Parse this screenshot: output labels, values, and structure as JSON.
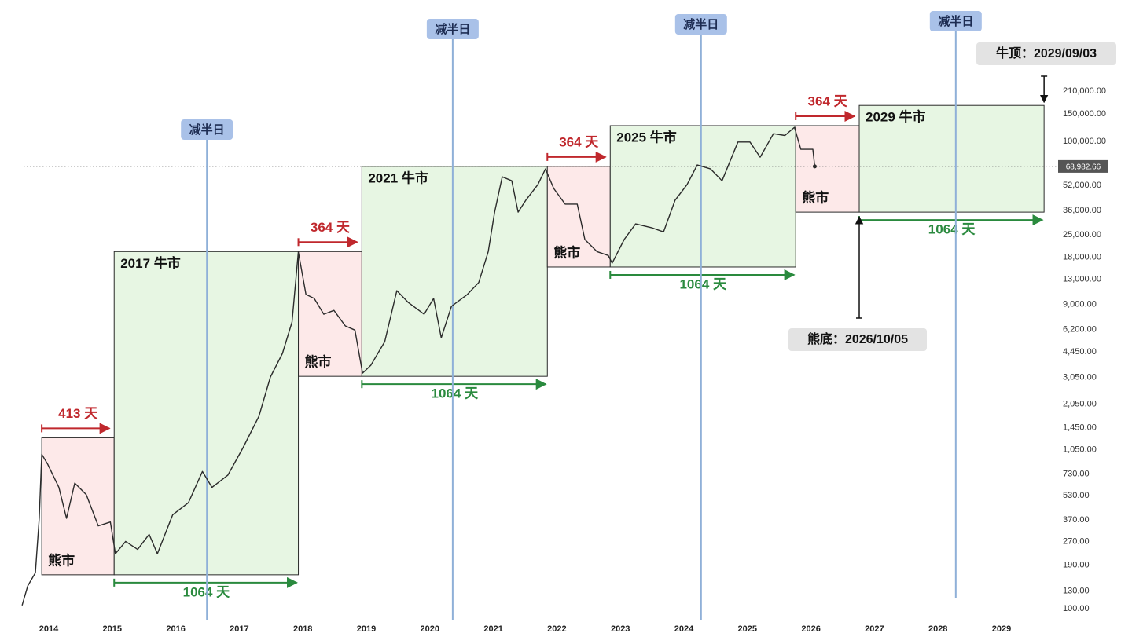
{
  "chart_data": {
    "type": "line",
    "log_y": true,
    "color": "#2b2b2b",
    "x": [
      2013.58,
      2013.67,
      2013.79,
      2013.85,
      2013.89,
      2013.98,
      2014.16,
      2014.28,
      2014.41,
      2014.59,
      2014.78,
      2014.97,
      2015.05,
      2015.21,
      2015.4,
      2015.58,
      2015.71,
      2015.95,
      2016.2,
      2016.42,
      2016.57,
      2016.82,
      2017.06,
      2017.31,
      2017.49,
      2017.68,
      2017.83,
      2017.93,
      2018.05,
      2018.18,
      2018.33,
      2018.49,
      2018.67,
      2018.82,
      2018.94,
      2019.07,
      2019.29,
      2019.48,
      2019.66,
      2019.91,
      2020.06,
      2020.18,
      2020.34,
      2020.59,
      2020.77,
      2020.92,
      2021.02,
      2021.14,
      2021.29,
      2021.39,
      2021.51,
      2021.7,
      2021.82,
      2021.95,
      2022.13,
      2022.32,
      2022.44,
      2022.63,
      2022.81,
      2022.87,
      2023.06,
      2023.24,
      2023.49,
      2023.68,
      2023.86,
      2024.05,
      2024.21,
      2024.42,
      2024.6,
      2024.85,
      2025.04,
      2025.2,
      2025.41,
      2025.59,
      2025.74,
      2025.84,
      2026.03,
      2026.06
    ],
    "values": [
      105,
      140,
      170,
      380,
      980,
      850,
      600,
      380,
      640,
      540,
      340,
      360,
      225,
      270,
      240,
      300,
      225,
      400,
      480,
      760,
      600,
      720,
      1080,
      1720,
      3070,
      4350,
      6920,
      19500,
      10400,
      9800,
      7760,
      8220,
      6530,
      6140,
      3250,
      3650,
      5170,
      11000,
      9240,
      7760,
      9800,
      5480,
      8730,
      10400,
      12400,
      19600,
      35100,
      59200,
      55800,
      35100,
      41800,
      52700,
      66500,
      49800,
      39500,
      39500,
      23400,
      19600,
      18500,
      16500,
      23400,
      29500,
      27900,
      26200,
      41800,
      52700,
      70500,
      66500,
      55800,
      99000,
      99000,
      79100,
      112000,
      109000,
      123000,
      88900,
      88900,
      69000
    ],
    "xlim": [
      2013.5,
      2029.75
    ],
    "xticks": [
      2014,
      2015,
      2016,
      2017,
      2018,
      2019,
      2020,
      2021,
      2022,
      2023,
      2024,
      2025,
      2026,
      2027,
      2028,
      2029
    ],
    "ylim": [
      100,
      210000
    ],
    "yticks": [
      {
        "value": 100,
        "label": "100.00"
      },
      {
        "value": 130,
        "label": "130.00"
      },
      {
        "value": 190,
        "label": "190.00"
      },
      {
        "value": 270,
        "label": "270.00"
      },
      {
        "value": 370,
        "label": "370.00"
      },
      {
        "value": 530,
        "label": "530.00"
      },
      {
        "value": 730,
        "label": "730.00"
      },
      {
        "value": 1050,
        "label": "1,050.00"
      },
      {
        "value": 1450,
        "label": "1,450.00"
      },
      {
        "value": 2050,
        "label": "2,050.00"
      },
      {
        "value": 3050,
        "label": "3,050.00"
      },
      {
        "value": 4450,
        "label": "4,450.00"
      },
      {
        "value": 6200,
        "label": "6,200.00"
      },
      {
        "value": 9000,
        "label": "9,000.00"
      },
      {
        "value": 13000,
        "label": "13,000.00"
      },
      {
        "value": 18000,
        "label": "18,000.00"
      },
      {
        "value": 25000,
        "label": "25,000.00"
      },
      {
        "value": 36000,
        "label": "36,000.00"
      },
      {
        "value": 52000,
        "label": "52,000.00"
      },
      {
        "value": 100000,
        "label": "100,000.00"
      },
      {
        "value": 150000,
        "label": "150,000.00"
      },
      {
        "value": 210000,
        "label": "210,000.00"
      }
    ],
    "current_price": {
      "value": 68982.66,
      "label": "68,982.66"
    },
    "regions": [
      {
        "kind": "bear",
        "label": "熊市",
        "duration": "413 天",
        "x": [
          2013.89,
          2015.03
        ],
        "y": [
          165,
          1250
        ]
      },
      {
        "kind": "bull",
        "label": "2017 牛市",
        "duration": "1064 天",
        "x": [
          2015.03,
          2017.93
        ],
        "y": [
          165,
          19600
        ]
      },
      {
        "kind": "bear",
        "label": "熊市",
        "duration": "364 天",
        "x": [
          2017.93,
          2018.93
        ],
        "y": [
          3100,
          19600
        ]
      },
      {
        "kind": "bull",
        "label": "2021 牛市",
        "duration": "1064 天",
        "x": [
          2018.93,
          2021.85
        ],
        "y": [
          3100,
          69000
        ]
      },
      {
        "kind": "bear",
        "label": "熊市",
        "duration": "364 天",
        "x": [
          2021.85,
          2022.84
        ],
        "y": [
          15600,
          69000
        ]
      },
      {
        "kind": "bull",
        "label": "2025 牛市",
        "duration": "1064 天",
        "x": [
          2022.84,
          2025.76
        ],
        "y": [
          15600,
          126000
        ]
      },
      {
        "kind": "bear",
        "label": "熊市",
        "duration": "364 天",
        "x": [
          2025.76,
          2026.76
        ],
        "y": [
          35100,
          126000
        ]
      },
      {
        "kind": "bull",
        "label": "2029 牛市",
        "duration": "1064 天",
        "x": [
          2026.76,
          2029.67
        ],
        "y": [
          35100,
          170000
        ]
      }
    ],
    "halvings": [
      {
        "x": 2016.49,
        "label": "减半日"
      },
      {
        "x": 2020.36,
        "label": "减半日"
      },
      {
        "x": 2024.27,
        "label": "减半日"
      },
      {
        "x": 2028.28,
        "label": "减半日"
      }
    ],
    "callouts": [
      {
        "label": "牛顶：2029/09/03"
      },
      {
        "label": "熊底：2026/10/05"
      }
    ]
  }
}
